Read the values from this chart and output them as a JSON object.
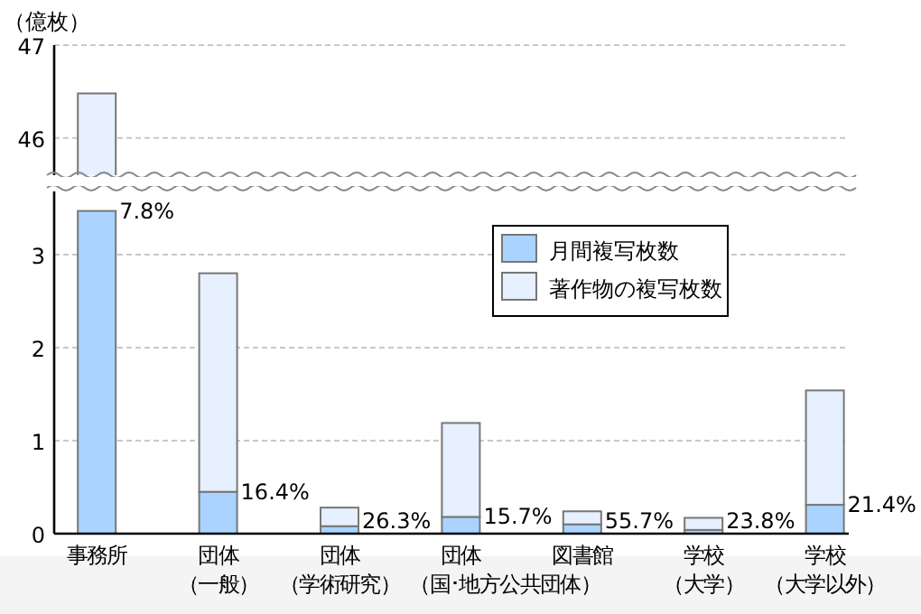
{
  "chart_data": [
    {
      "type": "bar",
      "ylabel": "（億枚）",
      "categories": [
        null,
        null,
        null,
        null,
        null,
        null,
        null
      ],
      "series": [
        {
          "color": "#e6f0ff",
          "values": [
            46.48,
            null,
            null,
            null,
            null,
            null,
            null
          ]
        }
      ],
      "ylim": [
        45.6,
        47
      ],
      "yticks": [
        46,
        47
      ],
      "grid": "y",
      "tick_labels": "y"
    },
    {
      "type": "bar",
      "stacked": true,
      "categories": [
        "事務所",
        "団体（一般）",
        "団体（学術研究）",
        "団体（国･地方公共団体）",
        "図書館",
        "学校（大学）",
        "学校（大学以外）"
      ],
      "series": [
        {
          "name": "月間複写枚数",
          "color": "#aad4ff",
          "values": [
            3.47,
            0.45,
            0.08,
            0.18,
            0.1,
            0.04,
            0.31
          ]
        },
        {
          "name": "著作物の複写枚数",
          "color": "#e6f0ff",
          "values": [
            null,
            2.35,
            0.2,
            1.01,
            0.14,
            0.13,
            1.23
          ]
        }
      ],
      "ylim": [
        0,
        3.68
      ],
      "yticks": [
        0,
        1,
        2,
        3
      ],
      "grid": "y",
      "legend": "top right",
      "annotations": [
        {
          "text": "7.8%",
          "x": "事務所",
          "y": 3.47
        },
        {
          "text": "16.4%",
          "x": "団体（一般）",
          "y": 0.45
        },
        {
          "text": "26.3%",
          "x": "団体（学術研究）",
          "y": 0.08
        },
        "15.7%",
        {
          "text": "55.7%",
          "x": "図書館",
          "y": 0.1
        },
        {
          "text": "23.8%",
          "x": "学校（大学）",
          "y": 0.04
        },
        {
          "text": "21.4%",
          "x": "学校（大学以外）",
          "y": 0.31
        }
      ]
    }
  ]
}
